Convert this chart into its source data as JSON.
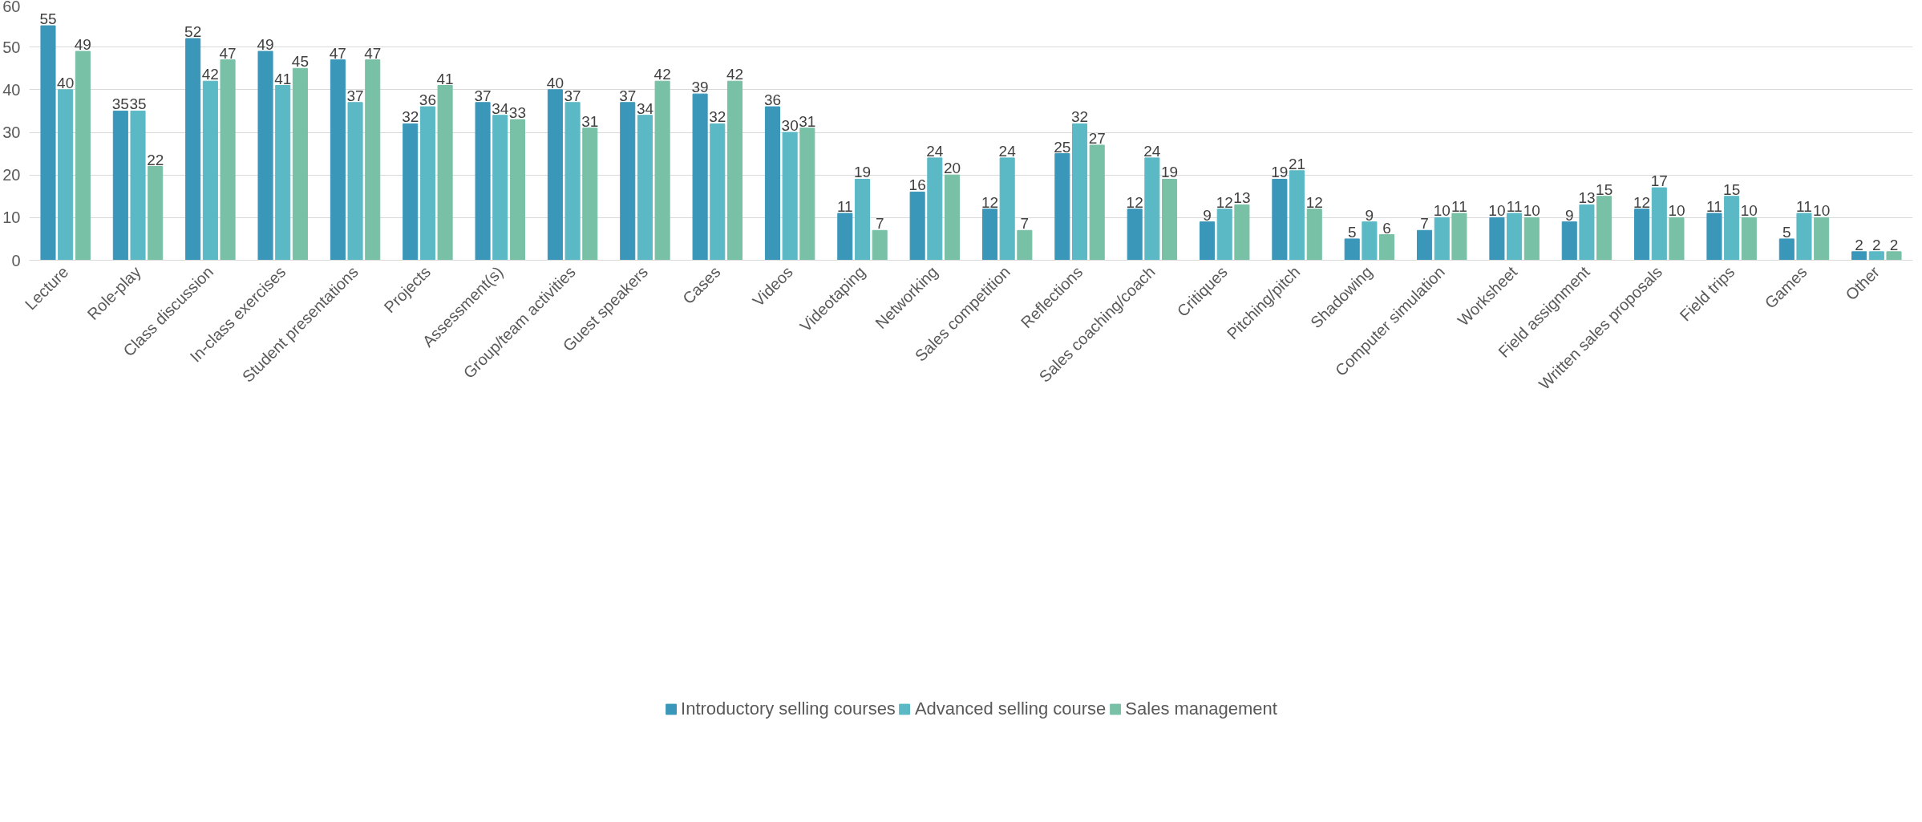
{
  "chart_data": {
    "type": "bar",
    "categories": [
      "Lecture",
      "Role-play",
      "Class discussion",
      "In-class exercises",
      "Student presentations",
      "Projects",
      "Assessment(s)",
      "Group/team activities",
      "Guest speakers",
      "Cases",
      "Videos",
      "Videotaping",
      "Networking",
      "Sales competition",
      "Reflections",
      "Sales coaching/coach",
      "Critiques",
      "Pitching/pitch",
      "Shadowing",
      "Computer simulation",
      "Worksheet",
      "Field assignment",
      "Written sales proposals",
      "Field trips",
      "Games",
      "Other"
    ],
    "series": [
      {
        "name": "Introductory selling courses",
        "color": "#3a97ba",
        "values": [
          55,
          35,
          52,
          49,
          47,
          32,
          37,
          40,
          37,
          39,
          36,
          11,
          16,
          12,
          25,
          12,
          9,
          19,
          5,
          7,
          10,
          9,
          12,
          11,
          5,
          2
        ]
      },
      {
        "name": "Advanced selling course",
        "color": "#5bb9c6",
        "values": [
          40,
          35,
          42,
          41,
          37,
          36,
          34,
          37,
          34,
          32,
          30,
          19,
          24,
          24,
          32,
          24,
          12,
          21,
          9,
          10,
          11,
          13,
          17,
          15,
          11,
          2
        ]
      },
      {
        "name": "Sales management",
        "color": "#78c0a6",
        "values": [
          49,
          22,
          47,
          45,
          47,
          41,
          33,
          31,
          42,
          42,
          31,
          7,
          20,
          7,
          27,
          19,
          13,
          12,
          6,
          11,
          10,
          15,
          10,
          10,
          10,
          2
        ]
      }
    ],
    "ylim": [
      0,
      60
    ],
    "yticks": [
      0,
      10,
      20,
      30,
      40,
      50,
      60
    ],
    "grid": "y",
    "legend": "bottom",
    "data_labels": true
  }
}
